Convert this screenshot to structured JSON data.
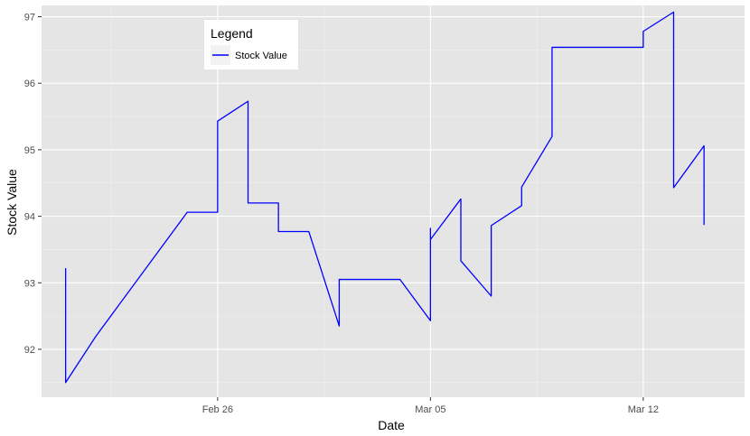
{
  "chart_data": {
    "type": "line",
    "xlabel": "Date",
    "ylabel": "Stock Value",
    "x_ticks": [
      "Feb 26",
      "Mar 05",
      "Mar 12"
    ],
    "y_ticks": [
      92,
      93,
      94,
      95,
      96,
      97
    ],
    "xlim": [
      "2018-02-20T05:00",
      "2018-03-15T08:00"
    ],
    "ylim": [
      91.28,
      97.17
    ],
    "grid": true,
    "legend": {
      "title": "Legend",
      "position": "top-center",
      "entries": [
        "Stock Value"
      ]
    },
    "series": [
      {
        "name": "Stock Value",
        "color": "#0000ff",
        "x": [
          "2018-02-21",
          "2018-02-21",
          "2018-02-22",
          "2018-02-25",
          "2018-02-26",
          "2018-02-26",
          "2018-02-27",
          "2018-02-27",
          "2018-02-28",
          "2018-02-28",
          "2018-03-01",
          "2018-03-02",
          "2018-03-02",
          "2018-03-04",
          "2018-03-05",
          "2018-03-05",
          "2018-03-05",
          "2018-03-06",
          "2018-03-06",
          "2018-03-07",
          "2018-03-07",
          "2018-03-08",
          "2018-03-08",
          "2018-03-09",
          "2018-03-09",
          "2018-03-12",
          "2018-03-12",
          "2018-03-13",
          "2018-03-13",
          "2018-03-14",
          "2018-03-14"
        ],
        "y": [
          93.22,
          91.5,
          92.2,
          94.06,
          94.06,
          95.43,
          95.73,
          94.2,
          94.2,
          93.77,
          93.77,
          92.35,
          93.05,
          93.05,
          92.43,
          93.82,
          93.65,
          94.26,
          93.33,
          92.8,
          93.86,
          94.16,
          94.44,
          95.2,
          96.54,
          96.54,
          96.78,
          97.07,
          94.43,
          95.06,
          93.87
        ]
      }
    ]
  }
}
